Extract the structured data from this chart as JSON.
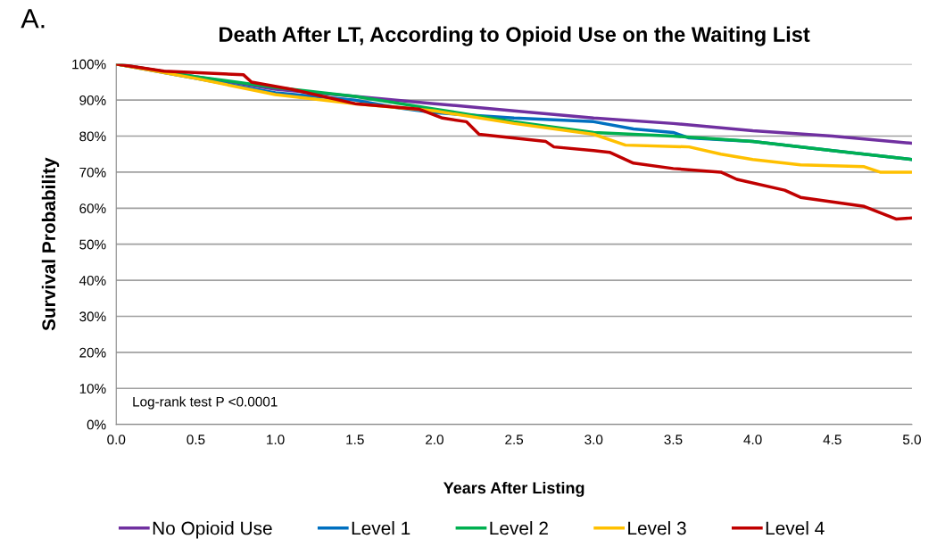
{
  "chart_data": {
    "type": "line",
    "title": "Death After LT, According to Opioid Use on the Waiting List",
    "xlabel": "Years After Listing",
    "ylabel": "Survival Probability",
    "annotations": [
      "A.",
      "Log-rank test P <0.0001"
    ],
    "xlim": [
      0,
      5
    ],
    "xticks": [
      {
        "value": 0,
        "label": "0.0"
      },
      0.5,
      {
        "value": 1,
        "label": "1.0"
      },
      1.5,
      {
        "value": 2,
        "label": "2.0"
      },
      2.5,
      {
        "value": 3,
        "label": "3.0"
      },
      3.5,
      {
        "value": 4,
        "label": "4.0"
      },
      4.5,
      {
        "value": 5,
        "label": "5.0"
      }
    ],
    "ylim": [
      0,
      100
    ],
    "yticks": [
      {
        "value": 0,
        "label": "0%"
      },
      {
        "value": 10,
        "label": "10%"
      },
      {
        "value": 20,
        "label": "20%"
      },
      {
        "value": 30,
        "label": "30%"
      },
      {
        "value": 40,
        "label": "40%"
      },
      {
        "value": 50,
        "label": "50%"
      },
      {
        "value": 60,
        "label": "60%"
      },
      {
        "value": 70,
        "label": "70%"
      },
      {
        "value": 80,
        "label": "80%"
      },
      {
        "value": 90,
        "label": "90%"
      },
      {
        "value": 100,
        "label": "100%"
      }
    ],
    "grid": "y",
    "legend": "bottom",
    "marker": "none",
    "line_style": "solid",
    "series": [
      {
        "name": "No Opioid Use",
        "color": "#7030a0",
        "x": [
          0,
          0.5,
          1.0,
          1.5,
          2.0,
          2.5,
          3.0,
          3.5,
          4.0,
          4.5,
          5.0
        ],
        "values": [
          100,
          96.5,
          93,
          91,
          89,
          87,
          85,
          83.5,
          81.5,
          80,
          78
        ]
      },
      {
        "name": "Level 1",
        "color": "#0070c0",
        "x": [
          0,
          0.5,
          1.0,
          1.5,
          1.75,
          2.0,
          2.5,
          3.0,
          3.25,
          3.5,
          3.6,
          4.0,
          4.5,
          5.0
        ],
        "values": [
          100,
          96,
          92,
          90,
          88,
          86.5,
          85,
          84,
          82,
          81,
          79.5,
          78.5,
          76,
          73.5
        ]
      },
      {
        "name": "Level 2",
        "color": "#00b050",
        "x": [
          0,
          0.5,
          1.0,
          1.5,
          2.0,
          2.5,
          3.0,
          3.5,
          4.0,
          4.5,
          5.0
        ],
        "values": [
          100,
          96.5,
          93.5,
          91,
          87.5,
          84,
          81,
          80,
          78.5,
          76,
          73.5
        ]
      },
      {
        "name": "Level 3",
        "color": "#ffc000",
        "x": [
          0,
          0.5,
          1.0,
          1.5,
          2.0,
          2.5,
          3.0,
          3.2,
          3.6,
          3.8,
          4.0,
          4.3,
          4.7,
          4.8,
          5.0
        ],
        "values": [
          100,
          96,
          91.5,
          89,
          87,
          83.5,
          80.5,
          77.5,
          77,
          75,
          73.5,
          72,
          71.5,
          70,
          70
        ]
      },
      {
        "name": "Level 4",
        "color": "#c00000",
        "x": [
          0,
          0.3,
          0.8,
          0.85,
          1.1,
          1.5,
          1.9,
          2.05,
          2.2,
          2.28,
          2.7,
          2.75,
          3.0,
          3.1,
          3.25,
          3.5,
          3.8,
          3.9,
          4.2,
          4.3,
          4.7,
          4.9,
          5.0
        ],
        "values": [
          100,
          98,
          97,
          95,
          93,
          89,
          87.5,
          85,
          84,
          80.5,
          78.5,
          77,
          76,
          75.5,
          72.5,
          71,
          70,
          68,
          65,
          63,
          60.5,
          57,
          57.3
        ]
      }
    ]
  }
}
